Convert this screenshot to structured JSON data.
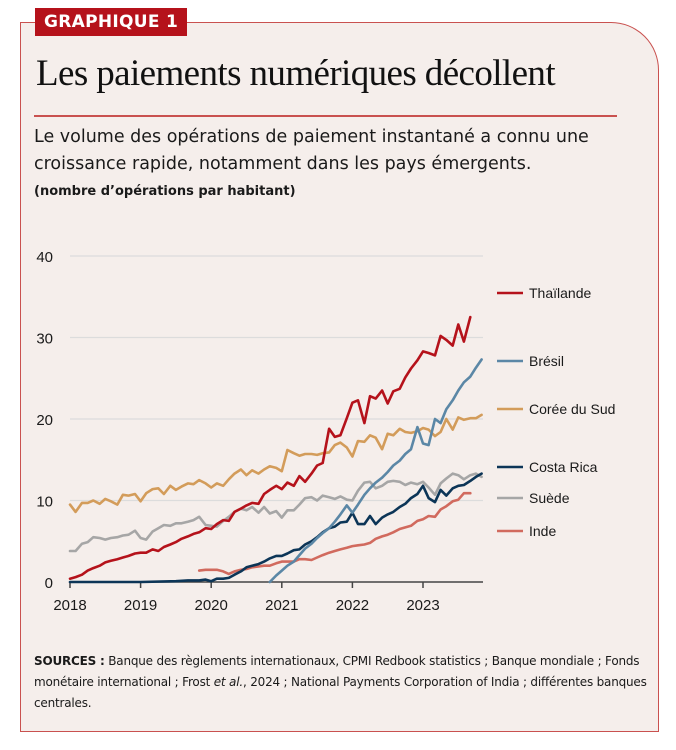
{
  "badge": "GRAPHIQUE 1",
  "title": "Les paiements numériques décollent",
  "subtitle": "Le volume des opérations de paiement instantané a connu une croissance rapide, notamment dans les pays émergents.",
  "sources": {
    "label": "SOURCES :",
    "text_before_italic": " Banque des règlements internationaux, CPMI Redbook statistics ; Banque mondiale ; Fonds monétaire international ; Frost ",
    "italic": "et al.",
    "text_after_italic": ", 2024 ; National Payments Corporation of India ; différentes banques centrales."
  },
  "chart_data": {
    "type": "line",
    "title": "Les paiements numériques décollent",
    "ylabel": "(nombre d’opérations par habitant)",
    "xlabel": "",
    "ylim": [
      0,
      40
    ],
    "xlim": [
      2018,
      2023.85
    ],
    "yticks": [
      0,
      10,
      20,
      30,
      40
    ],
    "xticks": [
      2018,
      2019,
      2020,
      2021,
      2022,
      2023
    ],
    "grid": true,
    "legend": "right",
    "series": [
      {
        "name": "Thaïlande",
        "color": "#b5121b",
        "x": [
          2018.0,
          2018.08,
          2018.17,
          2018.25,
          2018.33,
          2018.42,
          2018.5,
          2018.58,
          2018.67,
          2018.75,
          2018.83,
          2018.92,
          2019.0,
          2019.08,
          2019.17,
          2019.25,
          2019.33,
          2019.42,
          2019.5,
          2019.58,
          2019.67,
          2019.75,
          2019.83,
          2019.92,
          2020.0,
          2020.08,
          2020.17,
          2020.25,
          2020.33,
          2020.42,
          2020.5,
          2020.58,
          2020.67,
          2020.75,
          2020.83,
          2020.92,
          2021.0,
          2021.08,
          2021.17,
          2021.25,
          2021.33,
          2021.42,
          2021.5,
          2021.58,
          2021.67,
          2021.75,
          2021.83,
          2021.92,
          2022.0,
          2022.08,
          2022.17,
          2022.25,
          2022.33,
          2022.42,
          2022.5,
          2022.58,
          2022.67,
          2022.75,
          2022.83,
          2022.92,
          2023.0,
          2023.08,
          2023.17,
          2023.25,
          2023.33,
          2023.42,
          2023.5,
          2023.58,
          2023.67
        ],
        "y": [
          0.4,
          0.6,
          0.9,
          1.4,
          1.7,
          2.0,
          2.4,
          2.6,
          2.8,
          3.0,
          3.2,
          3.5,
          3.6,
          3.6,
          4.0,
          3.8,
          4.3,
          4.6,
          4.9,
          5.3,
          5.6,
          5.9,
          6.1,
          6.6,
          6.5,
          7.1,
          7.6,
          7.5,
          8.6,
          9.0,
          9.4,
          9.7,
          9.6,
          10.8,
          11.3,
          11.8,
          11.4,
          12.2,
          11.8,
          13.0,
          12.3,
          13.3,
          14.3,
          14.6,
          18.8,
          17.8,
          18.0,
          20.1,
          22.0,
          22.3,
          19.5,
          22.8,
          22.5,
          23.5,
          21.9,
          23.4,
          23.7,
          25.1,
          26.2,
          27.2,
          28.3,
          28.1,
          27.8,
          30.2,
          29.7,
          29.0,
          31.6,
          29.5,
          32.5
        ]
      },
      {
        "name": "Brésil",
        "color": "#5b87a6",
        "x": [
          2020.83,
          2020.92,
          2021.0,
          2021.08,
          2021.17,
          2021.25,
          2021.33,
          2021.42,
          2021.5,
          2021.58,
          2021.67,
          2021.75,
          2021.83,
          2021.92,
          2022.0,
          2022.08,
          2022.17,
          2022.25,
          2022.33,
          2022.42,
          2022.5,
          2022.58,
          2022.67,
          2022.75,
          2022.83,
          2022.92,
          2023.0,
          2023.08,
          2023.17,
          2023.25,
          2023.33,
          2023.42,
          2023.5,
          2023.58,
          2023.67,
          2023.75,
          2023.83
        ],
        "y": [
          0.0,
          0.8,
          1.4,
          2.0,
          2.5,
          3.3,
          4.1,
          4.7,
          5.4,
          6.0,
          6.6,
          7.4,
          8.3,
          9.4,
          8.5,
          9.5,
          10.7,
          11.5,
          12.2,
          12.8,
          13.5,
          14.3,
          14.9,
          15.7,
          16.3,
          19.0,
          17.0,
          16.8,
          20.0,
          19.5,
          21.2,
          22.3,
          23.5,
          24.5,
          25.2,
          26.3,
          27.3
        ]
      },
      {
        "name": "Corée du Sud",
        "color": "#d39c5a",
        "x": [
          2018.0,
          2018.08,
          2018.17,
          2018.25,
          2018.33,
          2018.42,
          2018.5,
          2018.58,
          2018.67,
          2018.75,
          2018.83,
          2018.92,
          2019.0,
          2019.08,
          2019.17,
          2019.25,
          2019.33,
          2019.42,
          2019.5,
          2019.58,
          2019.67,
          2019.75,
          2019.83,
          2019.92,
          2020.0,
          2020.08,
          2020.17,
          2020.25,
          2020.33,
          2020.42,
          2020.5,
          2020.58,
          2020.67,
          2020.75,
          2020.83,
          2020.92,
          2021.0,
          2021.08,
          2021.17,
          2021.25,
          2021.33,
          2021.42,
          2021.5,
          2021.58,
          2021.67,
          2021.75,
          2021.83,
          2021.92,
          2022.0,
          2022.08,
          2022.17,
          2022.25,
          2022.33,
          2022.42,
          2022.5,
          2022.58,
          2022.67,
          2022.75,
          2022.83,
          2022.92,
          2023.0,
          2023.08,
          2023.17,
          2023.25,
          2023.33,
          2023.42,
          2023.5,
          2023.58,
          2023.67,
          2023.75,
          2023.83
        ],
        "y": [
          9.5,
          8.6,
          9.7,
          9.7,
          10.0,
          9.6,
          10.2,
          9.9,
          9.5,
          10.7,
          10.6,
          10.8,
          9.9,
          10.9,
          11.4,
          11.5,
          10.8,
          11.8,
          11.3,
          11.7,
          12.1,
          12.0,
          12.5,
          12.1,
          11.6,
          12.1,
          11.8,
          12.6,
          13.3,
          13.8,
          13.1,
          13.7,
          13.3,
          13.8,
          14.2,
          14.0,
          13.6,
          16.2,
          15.8,
          15.5,
          15.7,
          15.7,
          15.6,
          15.8,
          15.9,
          16.8,
          17.1,
          16.5,
          15.4,
          17.3,
          17.2,
          18.0,
          17.7,
          16.3,
          18.2,
          18.0,
          18.8,
          18.4,
          18.3,
          18.5,
          18.9,
          18.7,
          17.9,
          18.4,
          20.0,
          18.7,
          20.2,
          19.9,
          20.1,
          20.1,
          20.5
        ]
      },
      {
        "name": "Costa Rica",
        "color": "#0c3557",
        "x": [
          2018.0,
          2018.5,
          2019.0,
          2019.5,
          2019.67,
          2019.83,
          2019.92,
          2020.0,
          2020.08,
          2020.17,
          2020.25,
          2020.33,
          2020.42,
          2020.5,
          2020.58,
          2020.67,
          2020.75,
          2020.83,
          2020.92,
          2021.0,
          2021.08,
          2021.17,
          2021.25,
          2021.33,
          2021.42,
          2021.5,
          2021.58,
          2021.67,
          2021.75,
          2021.83,
          2021.92,
          2022.0,
          2022.08,
          2022.17,
          2022.25,
          2022.33,
          2022.42,
          2022.5,
          2022.58,
          2022.67,
          2022.75,
          2022.83,
          2022.92,
          2023.0,
          2023.08,
          2023.17,
          2023.25,
          2023.33,
          2023.42,
          2023.5,
          2023.58,
          2023.67,
          2023.75,
          2023.83
        ],
        "y": [
          0.0,
          0.0,
          0.0,
          0.1,
          0.2,
          0.2,
          0.3,
          0.1,
          0.4,
          0.4,
          0.5,
          0.9,
          1.3,
          1.8,
          2.0,
          2.2,
          2.5,
          2.9,
          3.2,
          3.2,
          3.5,
          3.9,
          4.0,
          4.6,
          5.0,
          5.5,
          6.1,
          6.6,
          6.8,
          7.3,
          7.4,
          8.5,
          7.1,
          7.1,
          8.1,
          7.1,
          7.9,
          8.3,
          8.6,
          9.2,
          9.6,
          10.3,
          10.8,
          11.8,
          10.3,
          9.8,
          11.3,
          10.6,
          11.5,
          11.8,
          11.9,
          12.4,
          12.9,
          13.3
        ]
      },
      {
        "name": "Suède",
        "color": "#a6a6a6",
        "x": [
          2018.0,
          2018.08,
          2018.17,
          2018.25,
          2018.33,
          2018.42,
          2018.5,
          2018.58,
          2018.67,
          2018.75,
          2018.83,
          2018.92,
          2019.0,
          2019.08,
          2019.17,
          2019.25,
          2019.33,
          2019.42,
          2019.5,
          2019.58,
          2019.67,
          2019.75,
          2019.83,
          2019.92,
          2020.0,
          2020.08,
          2020.17,
          2020.25,
          2020.33,
          2020.42,
          2020.5,
          2020.58,
          2020.67,
          2020.75,
          2020.83,
          2020.92,
          2021.0,
          2021.08,
          2021.17,
          2021.25,
          2021.33,
          2021.42,
          2021.5,
          2021.58,
          2021.67,
          2021.75,
          2021.83,
          2021.92,
          2022.0,
          2022.08,
          2022.17,
          2022.25,
          2022.33,
          2022.42,
          2022.5,
          2022.58,
          2022.67,
          2022.75,
          2022.83,
          2022.92,
          2023.0,
          2023.08,
          2023.17,
          2023.25,
          2023.33,
          2023.42,
          2023.5,
          2023.58,
          2023.67,
          2023.75,
          2023.83
        ],
        "y": [
          3.8,
          3.8,
          4.7,
          4.9,
          5.5,
          5.4,
          5.2,
          5.4,
          5.5,
          5.7,
          5.8,
          6.3,
          5.4,
          5.2,
          6.2,
          6.6,
          7.0,
          6.9,
          7.2,
          7.2,
          7.4,
          7.6,
          8.0,
          7.0,
          6.9,
          6.8,
          7.5,
          8.0,
          8.6,
          9.0,
          8.8,
          9.2,
          8.5,
          9.2,
          8.4,
          8.7,
          7.9,
          8.8,
          8.8,
          9.5,
          10.3,
          10.4,
          10.0,
          10.6,
          10.4,
          10.2,
          10.5,
          10.1,
          10.0,
          11.2,
          12.2,
          12.3,
          11.5,
          11.8,
          12.3,
          12.4,
          12.3,
          11.9,
          12.2,
          12.0,
          12.3,
          11.6,
          10.7,
          12.1,
          12.7,
          13.3,
          13.1,
          12.6,
          13.1,
          13.3,
          12.9
        ]
      },
      {
        "name": "Inde",
        "color": "#d16a5e",
        "x": [
          2019.83,
          2019.92,
          2020.0,
          2020.08,
          2020.17,
          2020.25,
          2020.33,
          2020.42,
          2020.5,
          2020.58,
          2020.67,
          2020.75,
          2020.83,
          2020.92,
          2021.0,
          2021.08,
          2021.17,
          2021.25,
          2021.33,
          2021.42,
          2021.5,
          2021.58,
          2021.67,
          2021.75,
          2021.83,
          2021.92,
          2022.0,
          2022.08,
          2022.17,
          2022.25,
          2022.33,
          2022.42,
          2022.5,
          2022.58,
          2022.67,
          2022.75,
          2022.83,
          2022.92,
          2023.0,
          2023.08,
          2023.17,
          2023.25,
          2023.33,
          2023.42,
          2023.5,
          2023.58,
          2023.67
        ],
        "y": [
          1.4,
          1.5,
          1.5,
          1.5,
          1.3,
          1.0,
          1.3,
          1.5,
          1.6,
          1.8,
          1.9,
          2.0,
          2.0,
          2.3,
          2.5,
          2.5,
          2.5,
          2.8,
          2.8,
          2.7,
          3.0,
          3.3,
          3.6,
          3.8,
          4.0,
          4.2,
          4.4,
          4.5,
          4.6,
          4.8,
          5.3,
          5.6,
          5.8,
          6.1,
          6.5,
          6.7,
          6.9,
          7.5,
          7.7,
          8.1,
          8.0,
          8.9,
          9.3,
          9.9,
          10.1,
          10.9,
          10.9
        ]
      }
    ],
    "legend_labels": [
      "Thaïlande",
      "Brésil",
      "Corée du Sud",
      "Costa Rica",
      "Suède",
      "Inde"
    ]
  }
}
